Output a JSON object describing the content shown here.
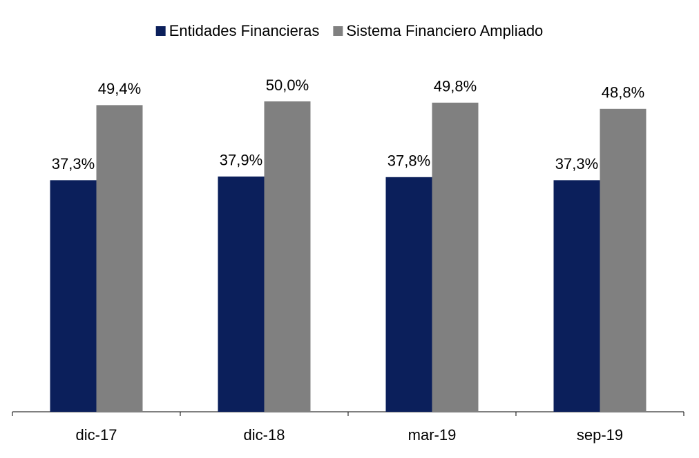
{
  "chart_data": {
    "type": "bar",
    "categories": [
      "dic-17",
      "dic-18",
      "mar-19",
      "sep-19"
    ],
    "series": [
      {
        "name": "Entidades Financieras",
        "color": "#0b1f5b",
        "values": [
          37.3,
          37.9,
          37.8,
          37.3
        ],
        "value_labels": [
          "37,3%",
          "37,9%",
          "37,8%",
          "37,3%"
        ]
      },
      {
        "name": "Sistema Financiero Ampliado",
        "color": "#808080",
        "values": [
          49.4,
          50.0,
          49.8,
          48.8
        ],
        "value_labels": [
          "49,4%",
          "50,0%",
          "49,8%",
          "48,8%"
        ]
      }
    ]
  }
}
